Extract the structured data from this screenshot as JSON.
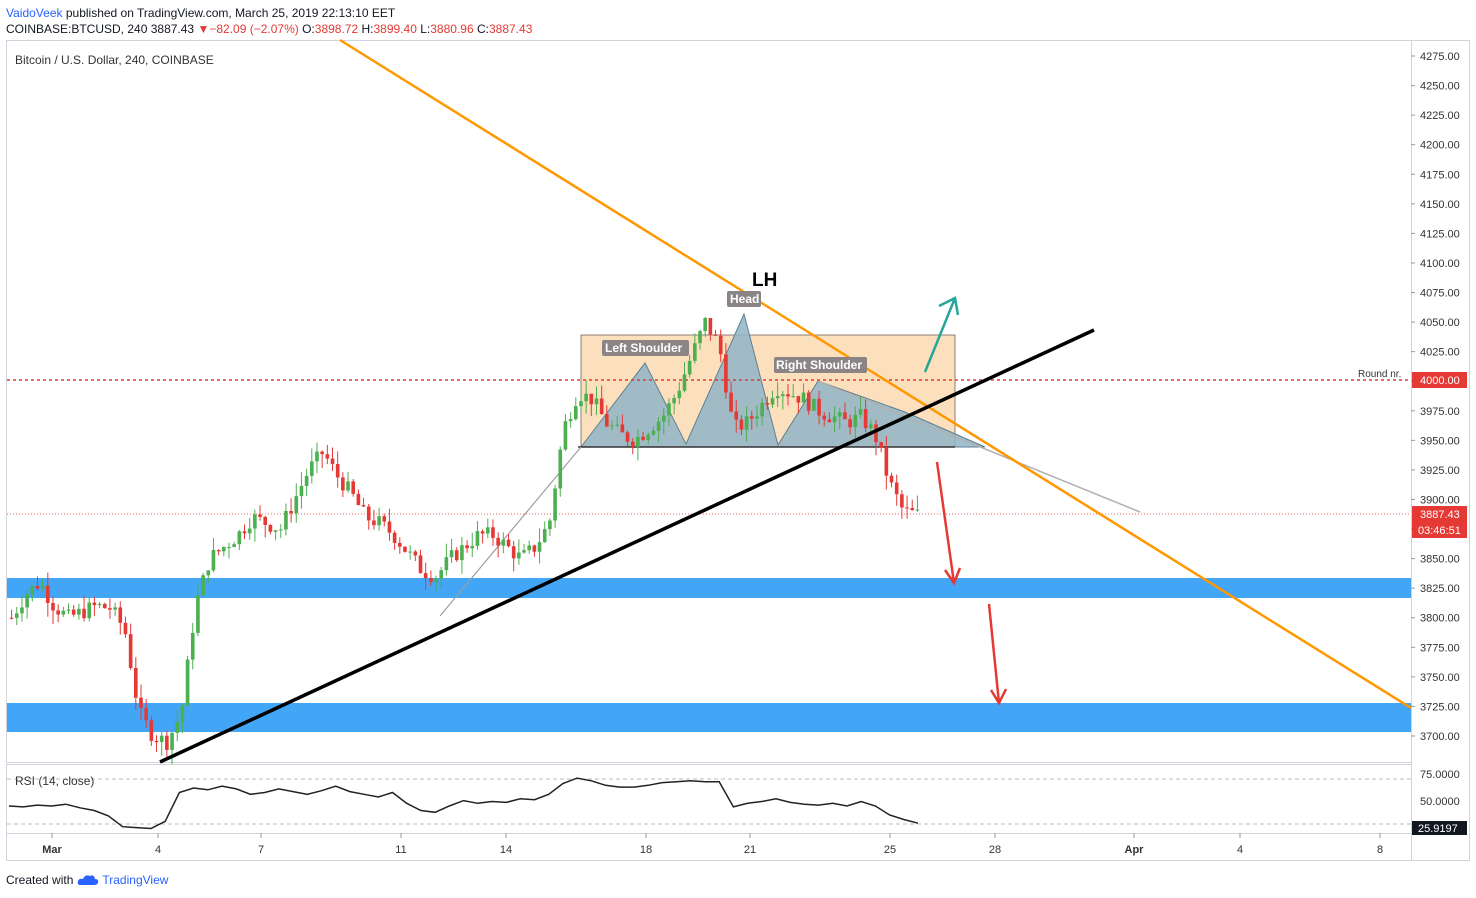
{
  "header": {
    "author": "VaidoVeek",
    "published": "published on TradingView.com, March 25, 2019 22:13:10 EET",
    "symbol": "COINBASE:BTCUSD, 240",
    "last": "3887.43",
    "change": "−82.09 (−2.07%)",
    "o_label": "O:",
    "o": "3898.72",
    "h_label": "H:",
    "h": "3899.40",
    "l_label": "L:",
    "l": "3880.96",
    "c_label": "C:",
    "c": "3887.43"
  },
  "chart_title": "Bitcoin / U.S. Dollar, 240, COINBASE",
  "price_axis": [
    "4275.00",
    "4250.00",
    "4225.00",
    "4200.00",
    "4175.00",
    "4150.00",
    "4125.00",
    "4100.00",
    "4075.00",
    "4050.00",
    "4025.00",
    "4000.00",
    "3975.00",
    "3950.00",
    "3925.00",
    "3900.00",
    "3875.00",
    "3850.00",
    "3825.00",
    "3800.00",
    "3775.00",
    "3750.00",
    "3725.00",
    "3700.00"
  ],
  "time_axis": [
    "Mar",
    "4",
    "7",
    "11",
    "14",
    "18",
    "21",
    "25",
    "28",
    "Apr",
    "4",
    "8"
  ],
  "price_badges": {
    "round": "4000.00",
    "last": "3887.43",
    "countdown": "03:46:51"
  },
  "annotations": {
    "round_nr": "Round nr.",
    "lh": "LH",
    "head": "Head",
    "left_shoulder": "Left Shoulder",
    "right_shoulder": "Right Shoulder"
  },
  "rsi": {
    "label": "RSI (14, close)",
    "axis": [
      "75.0000",
      "50.0000"
    ],
    "value": "25.9197"
  },
  "footer": {
    "created_with": "Created with",
    "brand": "TradingView"
  },
  "colors": {
    "up": "#4caf50",
    "down": "#e53935",
    "trendline": "#ff9800",
    "support_zone": "#42a5f5",
    "pattern_box": "#fbd6a8",
    "neck_fill": "#8fb4c8"
  },
  "chart_data": {
    "type": "candlestick",
    "title": "Bitcoin / U.S. Dollar, 240, COINBASE",
    "ylim": [
      3680,
      4285
    ],
    "y_ticks": [
      4275,
      4250,
      4225,
      4200,
      4175,
      4150,
      4125,
      4100,
      4075,
      4050,
      4025,
      4000,
      3975,
      3950,
      3925,
      3900,
      3875,
      3850,
      3825,
      3800,
      3775,
      3750,
      3725,
      3700
    ],
    "x_labels": [
      "Mar",
      "4",
      "7",
      "11",
      "14",
      "18",
      "21",
      "25",
      "28",
      "Apr",
      "4",
      "8"
    ],
    "last_price": 3887.43,
    "round_level": 4000.0,
    "support_zones": [
      [
        3815,
        3832
      ],
      [
        3702,
        3727
      ]
    ],
    "pattern": {
      "left_shoulder": 4018,
      "head": 4057,
      "right_shoulder": 4000,
      "neckline": 3944
    },
    "close_path": [
      3800,
      3820,
      3830,
      3810,
      3800,
      3805,
      3810,
      3808,
      3790,
      3720,
      3700,
      3695,
      3720,
      3810,
      3850,
      3860,
      3870,
      3885,
      3880,
      3875,
      3900,
      3925,
      3940,
      3920,
      3905,
      3885,
      3880,
      3870,
      3855,
      3840,
      3835,
      3850,
      3860,
      3870,
      3870,
      3860,
      3850,
      3860,
      3880,
      3960,
      3990,
      3985,
      3965,
      3955,
      3950,
      3960,
      3970,
      3990,
      4020,
      4050,
      4030,
      3960,
      3965,
      3980,
      3995,
      3990,
      3985,
      3975,
      3970,
      3965,
      3970,
      3955,
      3915,
      3890,
      3887.43
    ],
    "rsi_path": [
      45,
      44,
      46,
      45,
      47,
      43,
      40,
      34,
      22,
      21,
      20,
      28,
      60,
      65,
      63,
      67,
      64,
      58,
      60,
      64,
      61,
      58,
      62,
      67,
      61,
      58,
      55,
      60,
      48,
      40,
      38,
      45,
      51,
      48,
      50,
      49,
      53,
      52,
      58,
      70,
      76,
      73,
      68,
      66,
      66,
      68,
      71,
      72,
      73,
      72,
      72,
      44,
      48,
      50,
      53,
      49,
      47,
      46,
      48,
      45,
      50,
      45,
      35,
      30,
      25.92
    ],
    "rsi_ylim": [
      20,
      80
    ]
  }
}
